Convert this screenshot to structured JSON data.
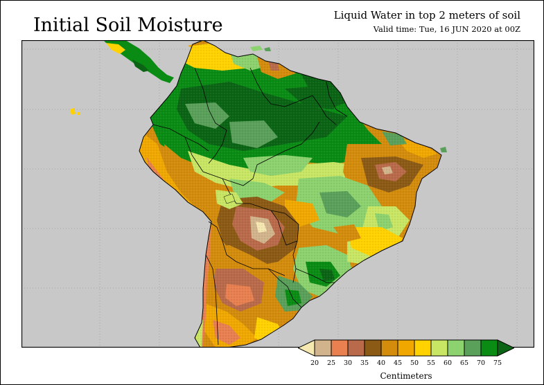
{
  "header": {
    "title": "Initial Soil Moisture",
    "right_title": "Liquid Water in top 2 meters of soil",
    "valid_time": "Valid time: Tue, 16 JUN 2020 at 00Z"
  },
  "map": {
    "region": "South America",
    "ocean_color": "#c8c8c8",
    "border_color": "#000000"
  },
  "legend": {
    "unit_label": "Centimeters",
    "ticks": [
      "20",
      "25",
      "30",
      "35",
      "40",
      "45",
      "50",
      "55",
      "60",
      "65",
      "70",
      "75"
    ],
    "colors": [
      "#f5e8b0",
      "#d2b48c",
      "#e88050",
      "#b96a4a",
      "#8b5a14",
      "#d48c0c",
      "#f0a800",
      "#ffd200",
      "#c8e664",
      "#8cd26e",
      "#5aa05a",
      "#0a8c14",
      "#0a6414"
    ]
  },
  "colors": {
    "text": "#000000",
    "background": "#ffffff",
    "ocean": "#c8c8c8",
    "very_wet": "#0a6414",
    "wet": "#0a8c14",
    "moist": "#5aa05a",
    "moderate": "#8cd26e",
    "light": "#c8e664",
    "mid": "#ffd200",
    "dryish": "#f0a800",
    "dry": "#d48c0c",
    "drier": "#8b5a14",
    "very_dry": "#b96a4a",
    "arid": "#e88050",
    "desert": "#d2b48c"
  }
}
